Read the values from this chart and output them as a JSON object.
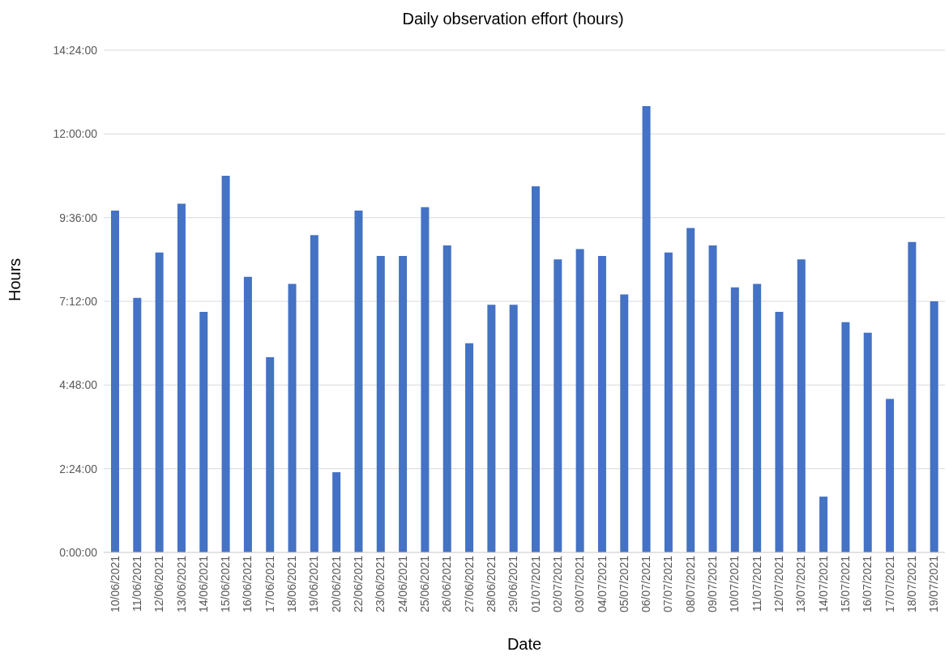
{
  "chart_data": {
    "type": "bar",
    "title": "Daily observation effort (hours)",
    "xlabel": "Date",
    "ylabel": "Hours",
    "categories": [
      "10/06/2021",
      "11/06/2021",
      "12/06/2021",
      "13/06/2021",
      "14/06/2021",
      "15/06/2021",
      "16/06/2021",
      "17/06/2021",
      "18/06/2021",
      "19/06/2021",
      "20/06/2021",
      "22/06/2021",
      "23/06/2021",
      "24/06/2021",
      "25/06/2021",
      "26/06/2021",
      "27/06/2021",
      "28/06/2021",
      "29/06/2021",
      "01/07/2021",
      "02/07/2021",
      "03/07/2021",
      "04/07/2021",
      "05/07/2021",
      "06/07/2021",
      "07/07/2021",
      "08/07/2021",
      "09/07/2021",
      "10/07/2021",
      "11/07/2021",
      "12/07/2021",
      "13/07/2021",
      "14/07/2021",
      "15/07/2021",
      "16/07/2021",
      "17/07/2021",
      "18/07/2021",
      "19/07/2021"
    ],
    "values": [
      9.8,
      7.3,
      8.6,
      10.0,
      6.9,
      10.8,
      7.9,
      5.6,
      7.7,
      9.1,
      2.3,
      9.8,
      8.5,
      8.5,
      9.9,
      8.8,
      6.0,
      7.1,
      7.1,
      10.5,
      8.4,
      8.7,
      8.5,
      7.4,
      12.8,
      8.6,
      9.3,
      8.8,
      7.6,
      7.7,
      6.9,
      8.4,
      1.6,
      6.6,
      6.3,
      4.4,
      8.9,
      7.2
    ],
    "color": "#4472c4",
    "ylim": [
      0,
      14.4
    ],
    "yticks": [
      {
        "value": 0,
        "label": "0:00:00"
      },
      {
        "value": 2.4,
        "label": "2:24:00"
      },
      {
        "value": 4.8,
        "label": "4:48:00"
      },
      {
        "value": 7.2,
        "label": "7:12:00"
      },
      {
        "value": 9.6,
        "label": "9:36:00"
      },
      {
        "value": 12,
        "label": "12:00:00"
      },
      {
        "value": 14.4,
        "label": "14:24:00"
      }
    ],
    "grid": "y"
  }
}
